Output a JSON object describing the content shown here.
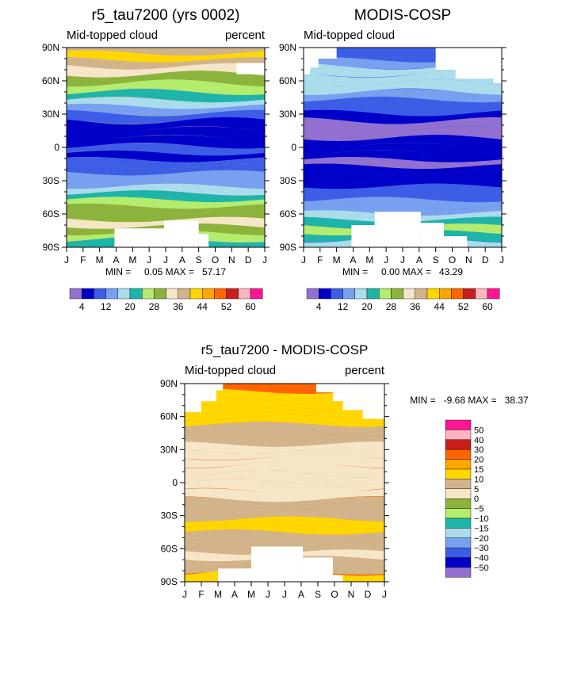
{
  "palette": [
    "#9170d0",
    "#0000c8",
    "#3c5ee6",
    "#78a0f0",
    "#aadcec",
    "#1fb4aa",
    "#b4ec6e",
    "#8cb43c",
    "#f5e6c8",
    "#d2b48c",
    "#ffd700",
    "#ffa500",
    "#ff6400",
    "#c81e1e",
    "#ffb4c0",
    "#ff1493"
  ],
  "month_labels": [
    "J",
    "F",
    "M",
    "A",
    "M",
    "J",
    "J",
    "A",
    "S",
    "O",
    "N",
    "D",
    "J"
  ],
  "lat_labels": [
    "90N",
    "60N",
    "30N",
    "0",
    "30S",
    "60S",
    "90S"
  ],
  "chart_data": [
    {
      "type": "heatmap",
      "panel": "model",
      "title": "r5_tau7200 (yrs 0002)",
      "left_label": "Mid-topped cloud",
      "right_label": "percent",
      "x": "month (Jan–Jan)",
      "y": "latitude (90N–90S)",
      "stats_text": "MIN =     0.05 MAX =   57.17",
      "min": 0.05,
      "max": 57.17,
      "colorbar_labels": [
        "4",
        "12",
        "20",
        "28",
        "36",
        "44",
        "52",
        "60"
      ],
      "bands": [
        {
          "lat": 88,
          "value": 38
        },
        {
          "lat": 82,
          "value": 40
        },
        {
          "lat": 76,
          "value": 36
        },
        {
          "lat": 70,
          "value": 34
        },
        {
          "lat": 62,
          "value": 30
        },
        {
          "lat": 54,
          "value": 26
        },
        {
          "lat": 46,
          "value": 22
        },
        {
          "lat": 40,
          "value": 18
        },
        {
          "lat": 34,
          "value": 13
        },
        {
          "lat": 28,
          "value": 8
        },
        {
          "lat": 20,
          "value": 5
        },
        {
          "lat": 12,
          "value": 5
        },
        {
          "lat": 5,
          "value": 7
        },
        {
          "lat": -2,
          "value": 8
        },
        {
          "lat": -8,
          "value": 7
        },
        {
          "lat": -14,
          "value": 9
        },
        {
          "lat": -20,
          "value": 10
        },
        {
          "lat": -26,
          "value": 12
        },
        {
          "lat": -32,
          "value": 15
        },
        {
          "lat": -38,
          "value": 18
        },
        {
          "lat": -44,
          "value": 22
        },
        {
          "lat": -50,
          "value": 25
        },
        {
          "lat": -56,
          "value": 28
        },
        {
          "lat": -62,
          "value": 30
        },
        {
          "lat": -68,
          "value": 32
        },
        {
          "lat": -74,
          "value": 30
        },
        {
          "lat": -80,
          "value": 26
        },
        {
          "lat": -86,
          "value": 22
        }
      ]
    },
    {
      "type": "heatmap",
      "panel": "obs",
      "title": "MODIS-COSP",
      "left_label": "Mid-topped cloud",
      "right_label": "",
      "x": "month (Jan–Jan)",
      "y": "latitude (90N–90S)",
      "stats_text": "MIN =     0.00 MAX =   43.29",
      "min": 0.0,
      "max": 43.29,
      "colorbar_labels": [
        "4",
        "12",
        "20",
        "28",
        "36",
        "44",
        "52",
        "60"
      ],
      "bands": [
        {
          "lat": 82,
          "value": 10
        },
        {
          "lat": 76,
          "value": 14
        },
        {
          "lat": 70,
          "value": 18
        },
        {
          "lat": 62,
          "value": 19
        },
        {
          "lat": 54,
          "value": 17
        },
        {
          "lat": 46,
          "value": 14
        },
        {
          "lat": 40,
          "value": 11
        },
        {
          "lat": 34,
          "value": 8
        },
        {
          "lat": 28,
          "value": 5
        },
        {
          "lat": 20,
          "value": 3
        },
        {
          "lat": 12,
          "value": 2
        },
        {
          "lat": 5,
          "value": 4
        },
        {
          "lat": -2,
          "value": 5
        },
        {
          "lat": -8,
          "value": 5
        },
        {
          "lat": -14,
          "value": 3
        },
        {
          "lat": -20,
          "value": 4
        },
        {
          "lat": -26,
          "value": 6
        },
        {
          "lat": -32,
          "value": 7
        },
        {
          "lat": -38,
          "value": 8
        },
        {
          "lat": -44,
          "value": 10
        },
        {
          "lat": -50,
          "value": 12
        },
        {
          "lat": -56,
          "value": 15
        },
        {
          "lat": -62,
          "value": 18
        },
        {
          "lat": -68,
          "value": 22
        },
        {
          "lat": -74,
          "value": 26
        },
        {
          "lat": -80,
          "value": 22
        },
        {
          "lat": -86,
          "value": 18
        }
      ]
    },
    {
      "type": "heatmap",
      "panel": "diff",
      "title": "r5_tau7200 - MODIS-COSP",
      "left_label": "Mid-topped cloud",
      "right_label": "percent",
      "x": "month (Jan–Jan)",
      "y": "latitude (90N–90S)",
      "stats_text": "MIN =   -9.68 MAX =   38.37",
      "min": -9.68,
      "max": 38.37,
      "colorbar_labels": [
        "50",
        "40",
        "30",
        "20",
        "15",
        "10",
        "5",
        "0",
        "-5",
        "-10",
        "-15",
        "-20",
        "-30",
        "-40",
        "-50"
      ],
      "bands": [
        {
          "lat": 86,
          "value": 22
        },
        {
          "lat": 80,
          "value": 14
        },
        {
          "lat": 74,
          "value": 12
        },
        {
          "lat": 68,
          "value": 11
        },
        {
          "lat": 62,
          "value": 11
        },
        {
          "lat": 56,
          "value": 10
        },
        {
          "lat": 50,
          "value": 8
        },
        {
          "lat": 44,
          "value": 7
        },
        {
          "lat": 38,
          "value": 6
        },
        {
          "lat": 32,
          "value": 4
        },
        {
          "lat": 26,
          "value": 3
        },
        {
          "lat": 20,
          "value": 2
        },
        {
          "lat": 12,
          "value": 2
        },
        {
          "lat": 4,
          "value": 2
        },
        {
          "lat": -4,
          "value": 3
        },
        {
          "lat": -12,
          "value": 4
        },
        {
          "lat": -18,
          "value": 6
        },
        {
          "lat": -24,
          "value": 5
        },
        {
          "lat": -30,
          "value": 7
        },
        {
          "lat": -36,
          "value": 11
        },
        {
          "lat": -42,
          "value": 11
        },
        {
          "lat": -48,
          "value": 9
        },
        {
          "lat": -54,
          "value": 8
        },
        {
          "lat": -60,
          "value": 6
        },
        {
          "lat": -66,
          "value": 4
        },
        {
          "lat": -72,
          "value": 7
        },
        {
          "lat": -78,
          "value": 9
        },
        {
          "lat": -84,
          "value": 12
        }
      ]
    }
  ]
}
